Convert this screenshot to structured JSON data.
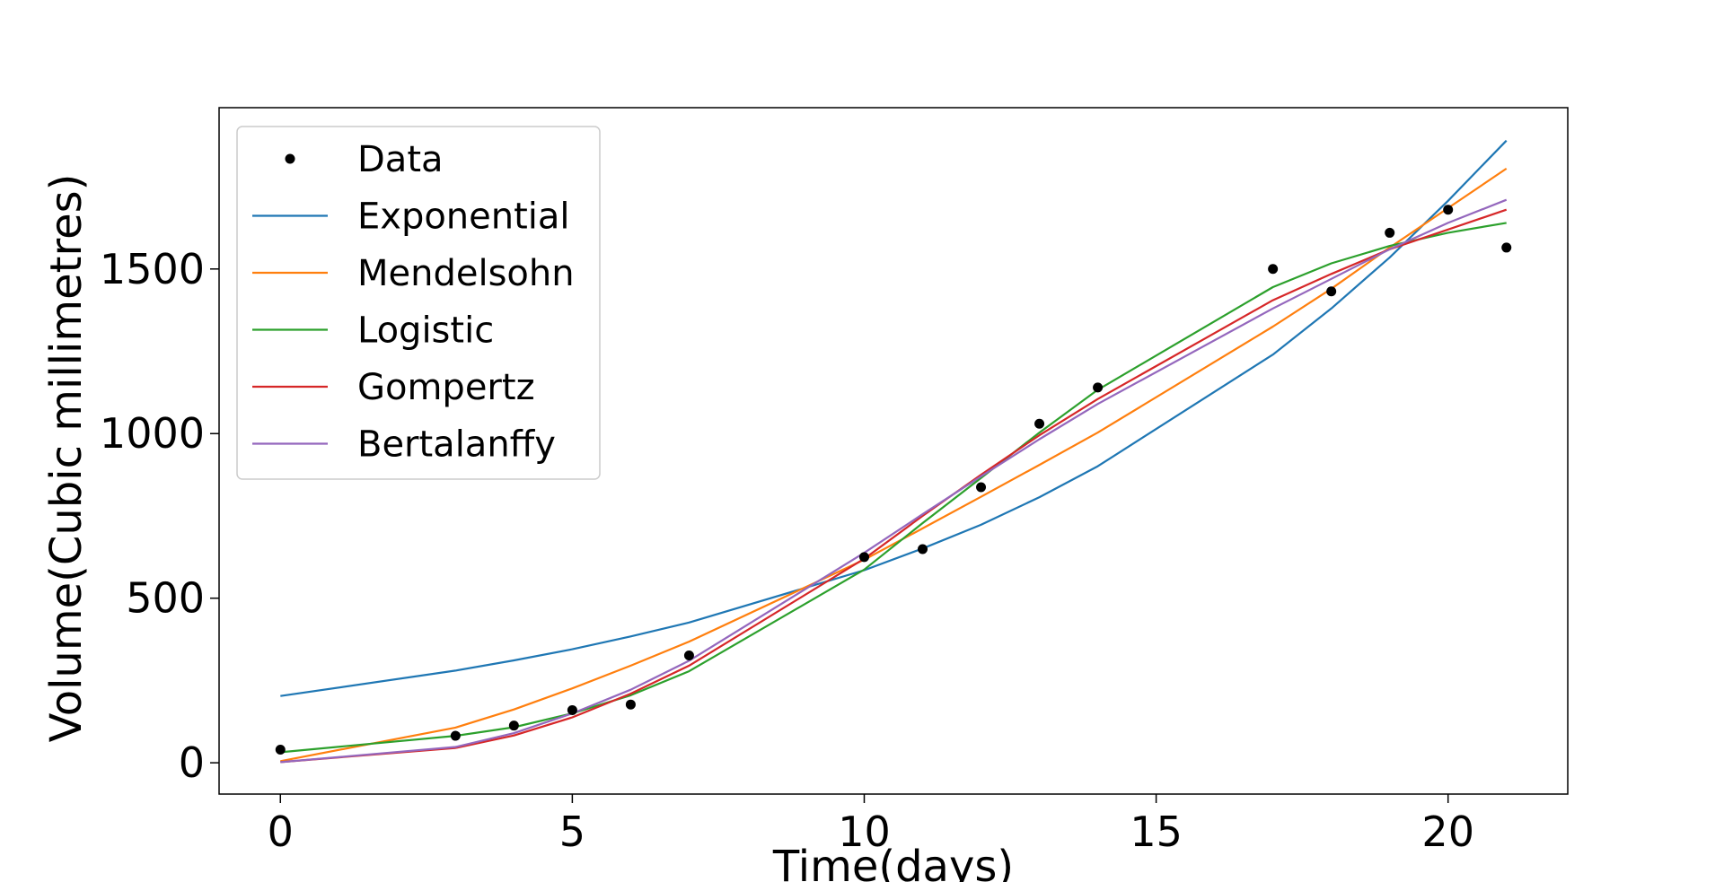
{
  "chart_data": {
    "type": "line",
    "title": "",
    "xlabel": "Time(days)",
    "ylabel": "Volume(Cubic millimetres)",
    "xlim": [
      -1.05,
      22.05
    ],
    "ylim": [
      -95,
      1990
    ],
    "xticks": [
      0,
      5,
      10,
      15,
      20
    ],
    "yticks": [
      0,
      500,
      1000,
      1500
    ],
    "grid": false,
    "legend": "upper-left",
    "data_points": {
      "name": "Data",
      "color": "#000000",
      "x": [
        0,
        3,
        4,
        5,
        6,
        7,
        10,
        11,
        12,
        13,
        14,
        17,
        18,
        19,
        20,
        21
      ],
      "y": [
        40,
        82,
        113,
        160,
        177,
        326,
        625,
        649,
        837,
        1030,
        1140,
        1500,
        1432,
        1610,
        1680,
        1565
      ]
    },
    "x": [
      0,
      3,
      4,
      5,
      6,
      7,
      10,
      11,
      12,
      13,
      14,
      17,
      18,
      19,
      20,
      21
    ],
    "series": [
      {
        "name": "Exponential",
        "color": "#1f77b4",
        "values": [
          203,
          280,
          311,
          345,
          384,
          426,
          585,
          651,
          723,
          807,
          901,
          1240,
          1380,
          1535,
          1707,
          1890
        ]
      },
      {
        "name": "Mendelsohn",
        "color": "#ff7f0e",
        "values": [
          5,
          107,
          162,
          226,
          295,
          368,
          617,
          712,
          808,
          905,
          1003,
          1325,
          1440,
          1565,
          1685,
          1805
        ]
      },
      {
        "name": "Logistic",
        "color": "#2ca02c",
        "values": [
          32,
          82,
          108,
          150,
          205,
          278,
          587,
          728,
          865,
          1003,
          1133,
          1445,
          1517,
          1570,
          1610,
          1640
        ]
      },
      {
        "name": "Gompertz",
        "color": "#d62728",
        "values": [
          2,
          45,
          83,
          138,
          210,
          295,
          620,
          750,
          875,
          995,
          1105,
          1405,
          1485,
          1560,
          1620,
          1680
        ]
      },
      {
        "name": "Bertalanffy",
        "color": "#9467bd",
        "values": [
          2,
          48,
          90,
          150,
          222,
          310,
          638,
          755,
          870,
          983,
          1090,
          1380,
          1470,
          1560,
          1640,
          1710
        ]
      }
    ]
  }
}
